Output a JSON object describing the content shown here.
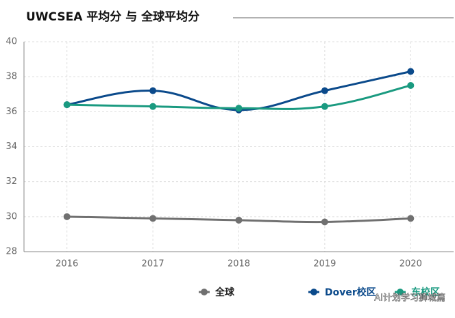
{
  "chart_data": {
    "type": "line",
    "title": "UWCSEA 平均分 与 全球平均分",
    "categories": [
      "2016",
      "2017",
      "2018",
      "2019",
      "2020"
    ],
    "series": [
      {
        "name": "全球",
        "color": "#707070",
        "values": [
          30.0,
          29.9,
          29.8,
          29.7,
          29.9
        ]
      },
      {
        "name": "Dover校区",
        "color": "#0b4a8b",
        "values": [
          36.4,
          37.2,
          36.1,
          37.2,
          38.3
        ]
      },
      {
        "name": "东校区",
        "color": "#1a9a80",
        "values": [
          36.4,
          36.3,
          36.2,
          36.3,
          37.5
        ]
      }
    ],
    "ylim": [
      28,
      40
    ],
    "yticks": [
      28,
      30,
      32,
      34,
      36,
      38,
      40
    ],
    "grid": true,
    "watermark": "AI计划学习狮城篇"
  }
}
